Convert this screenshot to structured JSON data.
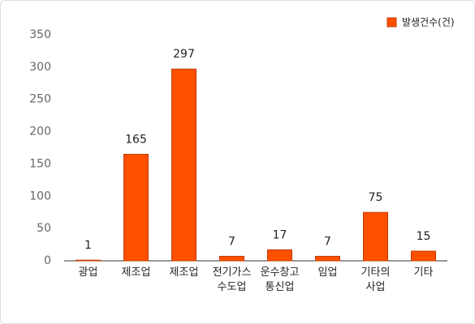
{
  "chart_data": {
    "type": "bar",
    "categories": [
      "광업",
      "제조업",
      "제조업",
      "전기가스 수도업",
      "운수창고 통신업",
      "임업",
      "기타의 사업",
      "기타"
    ],
    "series": [
      {
        "name": "발생건수(건)",
        "color": "#ff5000",
        "values": [
          1,
          165,
          297,
          7,
          17,
          7,
          75,
          15
        ]
      }
    ],
    "ylim": [
      0,
      350
    ],
    "yticks": [
      0,
      50,
      100,
      150,
      200,
      250,
      300,
      350
    ],
    "legend": "top-right",
    "grid": false
  }
}
